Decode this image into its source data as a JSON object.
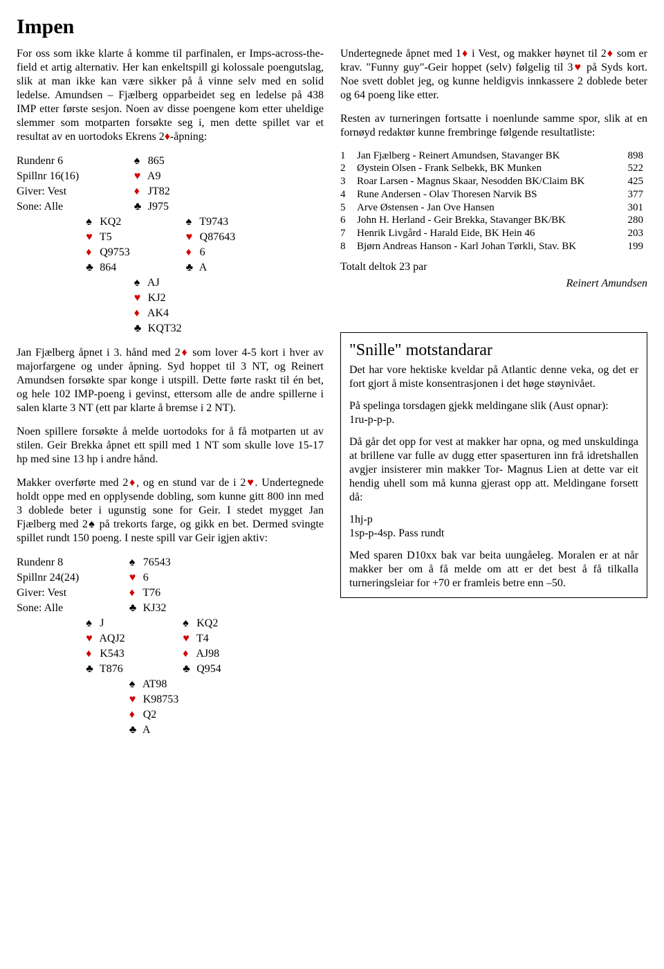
{
  "title": "Impen",
  "colors": {
    "text": "#000000",
    "background": "#ffffff",
    "red_suit": "#d00000"
  },
  "left": {
    "intro": "For oss som ikke klarte å komme til parfinalen, er Imps-across-the-field et artig alternativ. Her kan enkeltspill gi kolossale poengutslag, slik at man ikke kan være sikker på å vinne selv med en solid ledelse. Amundsen – Fjælberg opparbeidet seg en ledelse på 438 IMP etter første sesjon. Noen av disse poengene kom etter uheldige slemmer som motparten forsøkte seg i, men dette spillet var et resultat av en uortodoks Ekrens 2",
    "intro_suffix": "-åpning:",
    "deal1": {
      "meta": [
        "Rundenr 6",
        "Spillnr 16(16)",
        "Giver: Vest",
        "Sone: Alle"
      ],
      "north": {
        "s": "865",
        "h": "A9",
        "d": "JT82",
        "c": "J975"
      },
      "west": {
        "s": "KQ2",
        "h": "T5",
        "d": "Q9753",
        "c": "864"
      },
      "east": {
        "s": "T9743",
        "h": "Q87643",
        "d": "6",
        "c": "A"
      },
      "south": {
        "s": "AJ",
        "h": "KJ2",
        "d": "AK4",
        "c": "KQT32"
      }
    },
    "para2_a": "Jan Fjælberg åpnet i 3. hånd med 2",
    "para2_b": " som lover 4-5 kort i hver av majorfargene og under åpning. Syd hoppet til 3 NT, og Reinert Amundsen forsøkte spar konge i utspill. Dette førte raskt til én bet, og hele 102 IMP-poeng i gevinst, ettersom alle de andre spillerne i salen klarte 3 NT (ett par klarte å bremse i 2 NT).",
    "para3": "Noen spillere forsøkte å melde uortodoks for å få motparten ut av stilen. Geir Brekka åpnet ett spill med 1 NT som skulle love 15-17 hp med sine 13 hp i andre hånd.",
    "para4_a": "Makker overførte med 2",
    "para4_b": ", og en stund var de i 2",
    "para4_c": ". Undertegnede holdt oppe med en opplysende dobling, som kunne gitt 800 inn med 3 doblede beter i ugunstig sone for Geir. I stedet mygget Jan Fjælberg med 2",
    "para4_d": " på trekorts farge, og gikk en bet. Dermed svingte spillet rundt 150 poeng. I neste spill var Geir igjen aktiv:",
    "deal2": {
      "meta": [
        "Rundenr 8",
        "Spillnr 24(24)",
        "Giver: Vest",
        "Sone: Alle"
      ],
      "north": {
        "s": "76543",
        "h": "6",
        "d": "T76",
        "c": "KJ32"
      },
      "west": {
        "s": "J",
        "h": "AQJ2",
        "d": "K543",
        "c": "T876"
      },
      "east": {
        "s": "KQ2",
        "h": "T4",
        "d": "AJ98",
        "c": "Q954"
      },
      "south": {
        "s": "AT98",
        "h": "K98753",
        "d": "Q2",
        "c": "A"
      }
    }
  },
  "right": {
    "para1_a": "Undertegnede åpnet med 1",
    "para1_b": " i Vest, og makker høynet til 2",
    "para1_c": " som er krav. \"Funny guy\"-Geir hoppet (selv) følgelig til 3",
    "para1_d": " på Syds kort. Noe svett doblet jeg, og kunne heldigvis innkassere 2 doblede beter og 64 poeng like etter.",
    "para2": "Resten av turneringen fortsatte i noenlunde samme spor, slik at en fornøyd redaktør kunne frembringe følgende resultatliste:",
    "results": [
      {
        "n": "1",
        "name": "Jan Fjælberg - Reinert Amundsen, Stavanger BK",
        "pts": "898"
      },
      {
        "n": "2",
        "name": "Øystein Olsen - Frank Selbekk, BK Munken",
        "pts": "522"
      },
      {
        "n": "3",
        "name": "Roar Larsen - Magnus Skaar, Nesodden BK/Claim BK",
        "pts": "425"
      },
      {
        "n": "4",
        "name": "Rune Andersen - Olav Thoresen     Narvik BS",
        "pts": "377"
      },
      {
        "n": "5",
        "name": "Arve Østensen - Jan Ove Hansen",
        "pts": "301"
      },
      {
        "n": "6",
        "name": "John H. Herland - Geir Brekka, Stavanger BK/BK",
        "pts": "280"
      },
      {
        "n": "7",
        "name": "Henrik Livgård - Harald Eide, BK Hein 46",
        "pts": "203"
      },
      {
        "n": "8",
        "name": "Bjørn Andreas Hanson - Karl Johan Tørkli, Stav. BK",
        "pts": "199"
      }
    ],
    "totalt": "Totalt deltok 23 par",
    "byline": "Reinert Amundsen",
    "box": {
      "title": "\"Snille\" motstandarar",
      "p1": "Det har vore hektiske kveldar på Atlantic denne veka, og det er fort gjort å miste konsentrasjonen i det høge støynivået.",
      "p2": "På spelinga torsdagen gjekk meldingane slik (Aust opnar):",
      "p2b": "1ru-p-p-p.",
      "p3": "Då går det opp for vest at makker har opna, og med unskuldinga at brillene var fulle av dugg etter spaserturen inn frå idretshallen avgjer insisterer min makker Tor- Magnus Lien at dette var eit hendig uhell som må kunna gjerast opp att. Meldingane forsett då:",
      "p4a": "1hj-p",
      "p4b": "1sp-p-4sp. Pass rundt",
      "p5": "Med sparen D10xx bak var beita uungåeleg. Moralen er at når makker ber om å få melde om att er det best å få tilkalla turneringsleiar for +70 er framleis betre enn –50."
    }
  }
}
